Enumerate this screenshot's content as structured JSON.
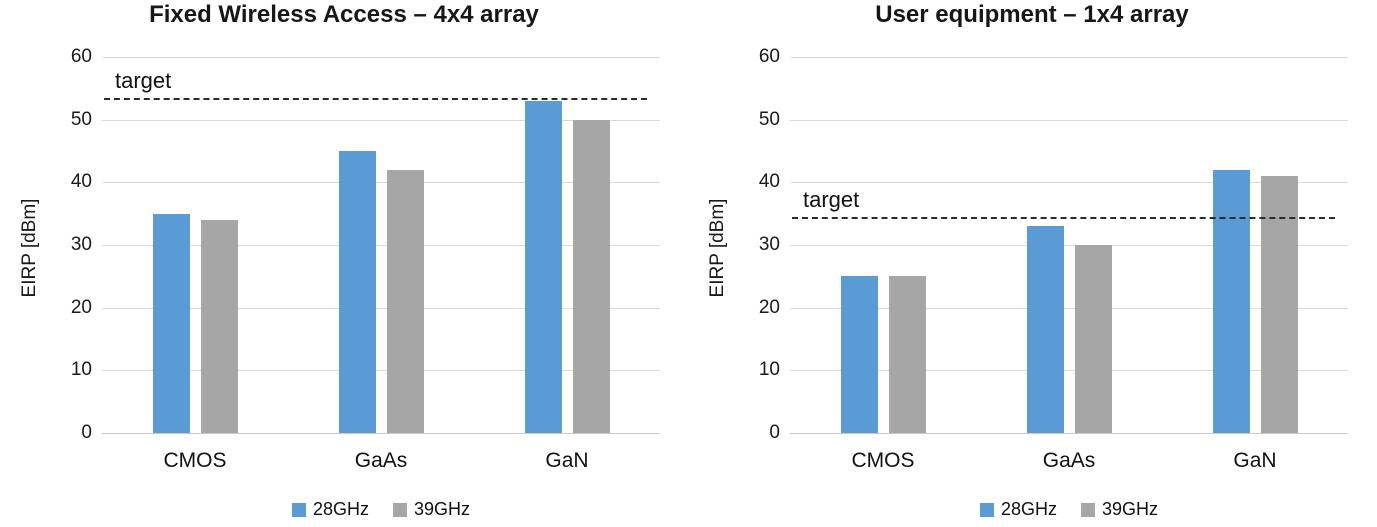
{
  "figure": {
    "kind": "dual bar chart figure"
  },
  "colors": {
    "series_28ghz": "#5B9BD5",
    "series_39ghz": "#A6A6A6",
    "gridline": "#D9D9D9",
    "target_line": "#2B2B2B",
    "title_text": "#171717",
    "axis_text": "#1A1A1A"
  },
  "chart_data": [
    {
      "type": "bar",
      "title": "Fixed Wireless Access – 4x4 array",
      "ylabel": "EIRP [dBm]",
      "xlabel": "",
      "ylim": [
        0,
        60
      ],
      "yticks": [
        0,
        10,
        20,
        30,
        40,
        50,
        60
      ],
      "grid": true,
      "categories": [
        "CMOS",
        "GaAs",
        "GaN"
      ],
      "series": [
        {
          "name": "28GHz",
          "color": "#5B9BD5",
          "values": [
            35,
            45,
            53
          ]
        },
        {
          "name": "39GHz",
          "color": "#A6A6A6",
          "values": [
            34,
            42,
            50
          ]
        }
      ],
      "target": {
        "label": "target",
        "value": 53.5
      },
      "legend_position": "bottom"
    },
    {
      "type": "bar",
      "title": "User equipment – 1x4 array",
      "ylabel": "EIRP [dBm]",
      "xlabel": "",
      "ylim": [
        0,
        60
      ],
      "yticks": [
        0,
        10,
        20,
        30,
        40,
        50,
        60
      ],
      "grid": true,
      "categories": [
        "CMOS",
        "GaAs",
        "GaN"
      ],
      "series": [
        {
          "name": "28GHz",
          "color": "#5B9BD5",
          "values": [
            25,
            33,
            42
          ]
        },
        {
          "name": "39GHz",
          "color": "#A6A6A6",
          "values": [
            25,
            30,
            41
          ]
        }
      ],
      "target": {
        "label": "target",
        "value": 34.5
      },
      "legend_position": "bottom"
    }
  ]
}
